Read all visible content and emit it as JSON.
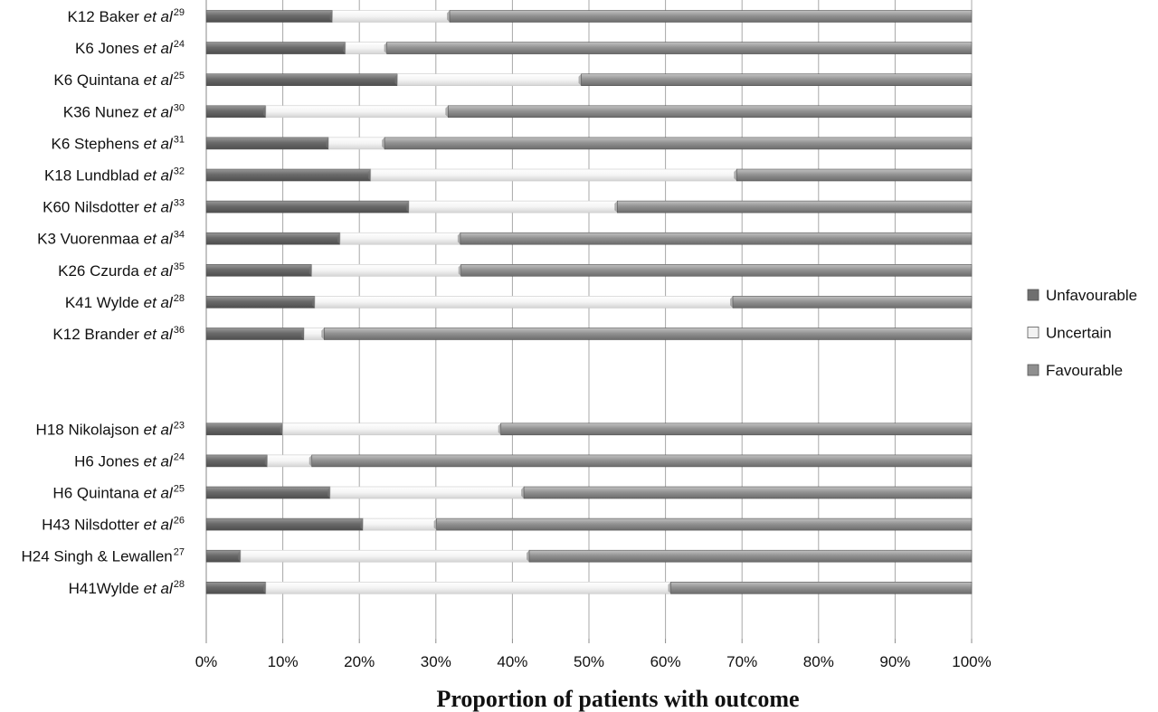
{
  "chart_data": {
    "type": "bar",
    "orientation": "horizontal",
    "stacked": true,
    "xlabel": "Proportion of patients with outcome",
    "ylabel": "",
    "xlim": [
      0,
      100
    ],
    "x_ticks": [
      "0%",
      "10%",
      "20%",
      "30%",
      "40%",
      "50%",
      "60%",
      "70%",
      "80%",
      "90%",
      "100%"
    ],
    "grid": "vertical",
    "legend_position": "right",
    "categories": [
      {
        "prefix": "K12 Baker ",
        "italic": "et al",
        "sup": "29"
      },
      {
        "prefix": "K6 Jones ",
        "italic": "et al",
        "sup": "24"
      },
      {
        "prefix": "K6 Quintana ",
        "italic": "et al",
        "sup": "25"
      },
      {
        "prefix": "K36 Nunez ",
        "italic": "et al",
        "sup": "30"
      },
      {
        "prefix": "K6 Stephens ",
        "italic": "et al",
        "sup": "31"
      },
      {
        "prefix": "K18 Lundblad ",
        "italic": "et al",
        "sup": "32"
      },
      {
        "prefix": "K60 Nilsdotter ",
        "italic": "et al",
        "sup": "33"
      },
      {
        "prefix": "K3 Vuorenmaa ",
        "italic": "et al",
        "sup": "34"
      },
      {
        "prefix": "K26 Czurda ",
        "italic": "et al",
        "sup": "35"
      },
      {
        "prefix": "K41 Wylde ",
        "italic": "et al",
        "sup": "28"
      },
      {
        "prefix": "K12 Brander ",
        "italic": "et al",
        "sup": "36"
      },
      {
        "prefix": "",
        "italic": "",
        "sup": ""
      },
      {
        "prefix": "",
        "italic": "",
        "sup": ""
      },
      {
        "prefix": "H18 Nikolajson ",
        "italic": "et al",
        "sup": "23"
      },
      {
        "prefix": "H6 Jones ",
        "italic": "et al",
        "sup": "24"
      },
      {
        "prefix": "H6 Quintana ",
        "italic": "et al",
        "sup": "25"
      },
      {
        "prefix": "H43 Nilsdotter ",
        "italic": "et al",
        "sup": "26"
      },
      {
        "prefix": "H24 Singh & Lewallen",
        "italic": "",
        "sup": "27"
      },
      {
        "prefix": "H41Wylde ",
        "italic": "et al",
        "sup": "28"
      }
    ],
    "series": [
      {
        "name": "Unfavourable",
        "color": "#6f6f6f",
        "values": [
          16.5,
          18.2,
          25,
          7.8,
          16,
          21.5,
          26.5,
          17.5,
          13.8,
          14.2,
          12.8,
          null,
          null,
          10,
          8,
          16.2,
          20.5,
          4.5,
          7.8
        ]
      },
      {
        "name": "Uncertain",
        "color": "#f2f2f2",
        "values": [
          15.3,
          5.4,
          24,
          23.8,
          7.3,
          47.8,
          27.2,
          15.7,
          19.5,
          54.6,
          2.6,
          null,
          null,
          28.5,
          5.8,
          25.3,
          9.6,
          37.7,
          52.9
        ]
      },
      {
        "name": "Favourable",
        "color": "#8f8f8f",
        "values": [
          68.2,
          76.4,
          51,
          68.4,
          76.7,
          30.7,
          46.3,
          66.8,
          66.7,
          31.2,
          84.6,
          null,
          null,
          61.5,
          86.2,
          58.5,
          69.9,
          57.8,
          39.3
        ]
      }
    ]
  }
}
